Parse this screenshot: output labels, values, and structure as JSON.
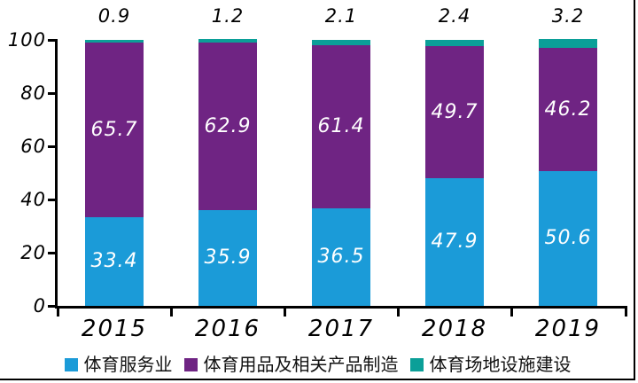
{
  "chart_data": {
    "type": "bar",
    "stacked": true,
    "title": "",
    "xlabel": "",
    "ylabel": "",
    "categories": [
      "2015",
      "2016",
      "2017",
      "2018",
      "2019"
    ],
    "series": [
      {
        "name": "体育服务业",
        "color": "#1B9BD8",
        "values": [
          33.4,
          35.9,
          36.5,
          47.9,
          50.6
        ]
      },
      {
        "name": "体育用品及相关产品制造",
        "color": "#6F2483",
        "values": [
          65.7,
          62.9,
          61.4,
          49.7,
          46.2
        ]
      },
      {
        "name": "体育场地设施建设",
        "color": "#0B9F98",
        "values": [
          0.9,
          1.2,
          2.1,
          2.4,
          3.2
        ]
      }
    ],
    "above_bar_labels": [
      "0.9",
      "1.2",
      "2.1",
      "2.4",
      "3.2"
    ],
    "in_bar_label_series": [
      0,
      1
    ],
    "y_ticks": [
      0,
      20,
      40,
      60,
      80,
      100
    ],
    "ylim": [
      0,
      100
    ],
    "grid": false,
    "legend_position": "bottom",
    "axis_color": "#000000",
    "value_label_color": "#ffffff"
  }
}
